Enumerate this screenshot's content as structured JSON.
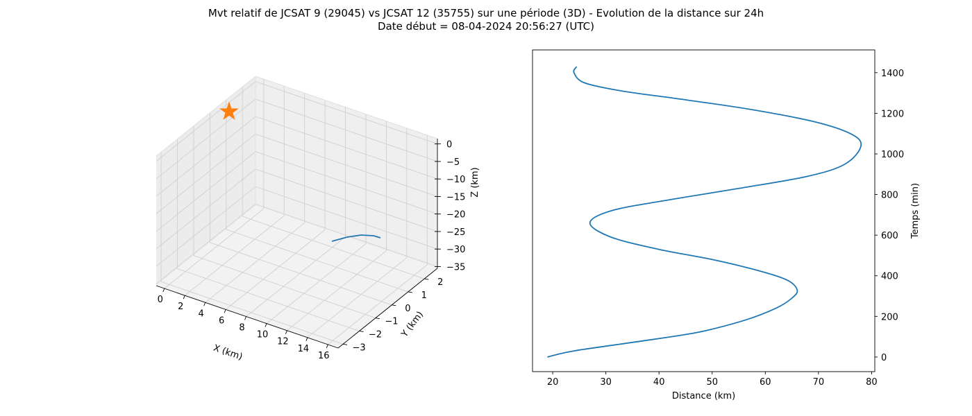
{
  "figure": {
    "title_line1": "Mvt relatif de JCSAT 9 (29045) vs JCSAT 12 (35755) sur une période (3D) - Evolution de la distance sur 24h",
    "title_line2": "Date début = 08-04-2024 20:56:27 (UTC)"
  },
  "chart_data": [
    {
      "type": "line",
      "projection": "3d",
      "xlabel": "X (km)",
      "ylabel": "Y (km)",
      "zlabel": "Z (km)",
      "xticks": [
        "0",
        "2",
        "4",
        "6",
        "8",
        "10",
        "12",
        "14",
        "16"
      ],
      "yticks": [
        "−3",
        "−2",
        "−1",
        "0",
        "1",
        "2"
      ],
      "zticks": [
        "−35",
        "−30",
        "−25",
        "−20",
        "−15",
        "−10",
        "−5",
        "0"
      ],
      "xlim": [
        -0.8,
        17
      ],
      "ylim": [
        -3.3,
        2.8
      ],
      "zlim": [
        -35.5,
        1.5
      ],
      "grid": true,
      "series": [
        {
          "color": "#1f77b4",
          "x": [
            16.0,
            16.6,
            16.9,
            17.0
          ],
          "y": [
            -0.2,
            0.3,
            0.7,
            0.9
          ],
          "z": [
            -34.0,
            -33.2,
            -32.4,
            -31.8
          ]
        }
      ],
      "marker": {
        "shape": "star",
        "color": "#ff7f0e",
        "x": 0,
        "y": 0,
        "z": 0
      }
    },
    {
      "type": "line",
      "xlabel": "Distance (km)",
      "ylabel": "Temps (min)",
      "y_axis_position": "right",
      "xticks": [
        "20",
        "30",
        "40",
        "50",
        "60",
        "70",
        "80"
      ],
      "yticks": [
        "0",
        "200",
        "400",
        "600",
        "800",
        "1000",
        "1200",
        "1400"
      ],
      "xlim": [
        16.2,
        80.6
      ],
      "ylim": [
        -72,
        1512
      ],
      "grid": false,
      "series": [
        {
          "color": "#1f77b4",
          "points": [
            [
              19.0,
              0
            ],
            [
              24.0,
              30
            ],
            [
              35.0,
              72
            ],
            [
              47.0,
              120
            ],
            [
              56.0,
              180
            ],
            [
              62.0,
              240
            ],
            [
              65.0,
              290
            ],
            [
              66.0,
              330
            ],
            [
              64.0,
              380
            ],
            [
              58.0,
              430
            ],
            [
              50.0,
              480
            ],
            [
              40.0,
              530
            ],
            [
              31.0,
              590
            ],
            [
              27.0,
              660
            ],
            [
              31.0,
              720
            ],
            [
              41.0,
              770
            ],
            [
              55.0,
              830
            ],
            [
              68.0,
              890
            ],
            [
              75.0,
              950
            ],
            [
              78.0,
              1040
            ],
            [
              76.0,
              1100
            ],
            [
              69.0,
              1160
            ],
            [
              57.0,
              1220
            ],
            [
              44.0,
              1270
            ],
            [
              33.0,
              1310
            ],
            [
              26.0,
              1350
            ],
            [
              24.0,
              1400
            ],
            [
              24.5,
              1430
            ]
          ]
        }
      ]
    }
  ]
}
